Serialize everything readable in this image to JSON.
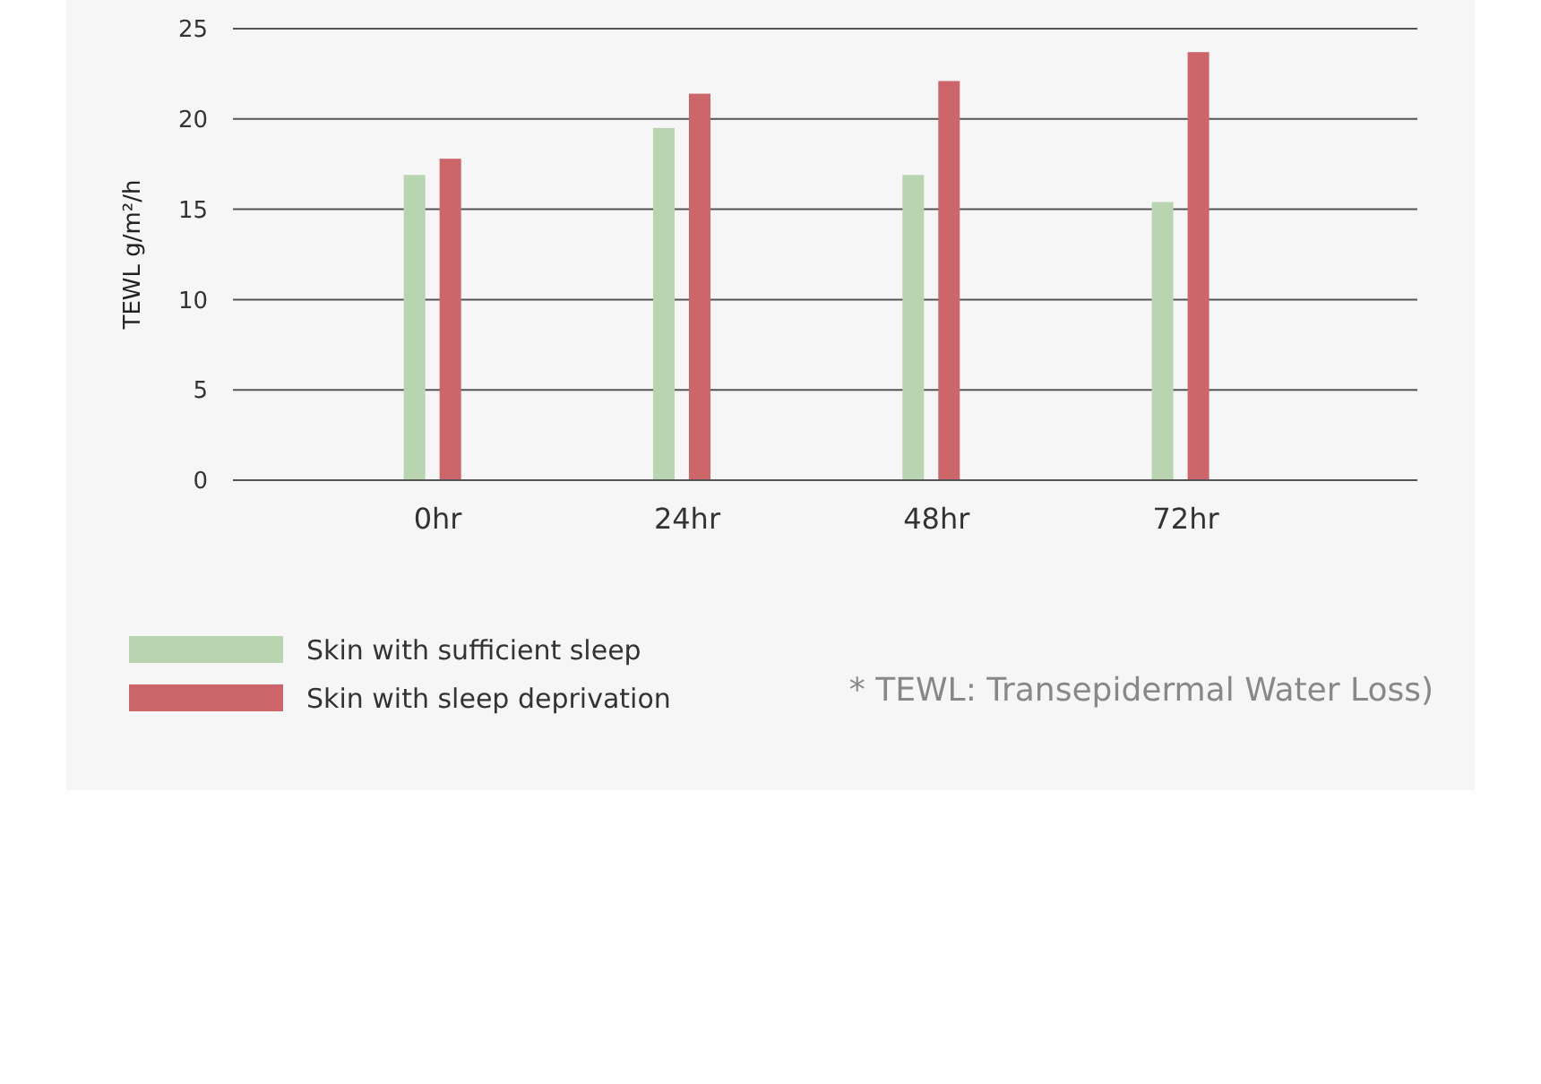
{
  "chart_data": {
    "type": "bar",
    "ylabel": "TEWL g/m²/h",
    "categories": [
      "0hr",
      "24hr",
      "48hr",
      "72hr"
    ],
    "series": [
      {
        "name": "Skin with sufficient sleep",
        "color": "#b8d4b0",
        "values": [
          16.9,
          19.5,
          16.9,
          15.4
        ]
      },
      {
        "name": "Skin with sleep deprivation",
        "color": "#cc666b",
        "values": [
          17.8,
          21.4,
          22.1,
          23.7
        ]
      }
    ],
    "ylim": [
      0,
      25
    ],
    "yticks": [
      0,
      5,
      10,
      15,
      20,
      25
    ],
    "grid": "y",
    "legend": "bottom left",
    "annotations": [
      "* TEWL: Transepidermal Water Loss)"
    ]
  }
}
